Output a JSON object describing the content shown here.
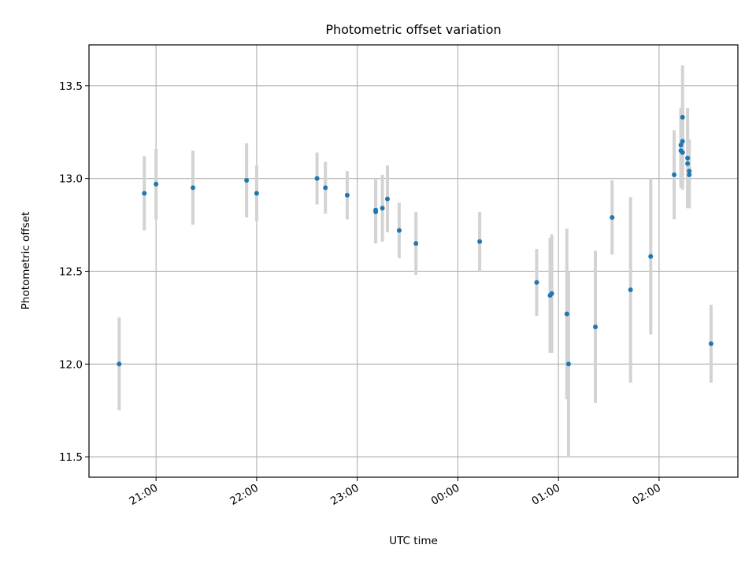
{
  "chart_data": {
    "type": "scatter",
    "title": "Photometric offset variation",
    "xlabel": "UTC time",
    "ylabel": "Photometric offset",
    "xlim": [
      "20:20",
      "02:47"
    ],
    "ylim": [
      11.39,
      13.72
    ],
    "x_ticks": [
      "21:00",
      "22:00",
      "23:00",
      "00:00",
      "01:00",
      "02:00"
    ],
    "y_ticks": [
      "11.5",
      "12.0",
      "12.5",
      "13.0",
      "13.5"
    ],
    "grid": true,
    "colors": {
      "point": "#1f77b4",
      "errorbar": "#d3d3d3",
      "grid": "#b0b0b0"
    },
    "points": [
      {
        "x": "20:38",
        "y": 12.0,
        "err": 0.25
      },
      {
        "x": "20:53",
        "y": 12.92,
        "err": 0.2
      },
      {
        "x": "21:00",
        "y": 12.97,
        "err": 0.19
      },
      {
        "x": "21:22",
        "y": 12.95,
        "err": 0.2
      },
      {
        "x": "21:54",
        "y": 12.99,
        "err": 0.2
      },
      {
        "x": "22:00",
        "y": 12.92,
        "err": 0.15
      },
      {
        "x": "22:36",
        "y": 13.0,
        "err": 0.14
      },
      {
        "x": "22:41",
        "y": 12.95,
        "err": 0.14
      },
      {
        "x": "22:54",
        "y": 12.91,
        "err": 0.13
      },
      {
        "x": "23:11",
        "y": 12.83,
        "err": 0.17
      },
      {
        "x": "23:11",
        "y": 12.82,
        "err": 0.17
      },
      {
        "x": "23:15",
        "y": 12.84,
        "err": 0.18
      },
      {
        "x": "23:18",
        "y": 12.89,
        "err": 0.18
      },
      {
        "x": "23:25",
        "y": 12.72,
        "err": 0.15
      },
      {
        "x": "23:35",
        "y": 12.65,
        "err": 0.17
      },
      {
        "x": "00:13",
        "y": 12.66,
        "err": 0.16
      },
      {
        "x": "00:47",
        "y": 12.44,
        "err": 0.18
      },
      {
        "x": "00:55",
        "y": 12.37,
        "err": 0.31
      },
      {
        "x": "00:56",
        "y": 12.38,
        "err": 0.32
      },
      {
        "x": "01:05",
        "y": 12.27,
        "err": 0.46
      },
      {
        "x": "01:06",
        "y": 12.0,
        "err": 0.5
      },
      {
        "x": "01:22",
        "y": 12.2,
        "err": 0.41
      },
      {
        "x": "01:32",
        "y": 12.79,
        "err": 0.2
      },
      {
        "x": "01:43",
        "y": 12.4,
        "err": 0.5
      },
      {
        "x": "01:55",
        "y": 12.58,
        "err": 0.42
      },
      {
        "x": "02:09",
        "y": 13.02,
        "err": 0.24
      },
      {
        "x": "02:13",
        "y": 13.15,
        "err": 0.2
      },
      {
        "x": "02:13",
        "y": 13.18,
        "err": 0.2
      },
      {
        "x": "02:14",
        "y": 13.2,
        "err": 0.2
      },
      {
        "x": "02:14",
        "y": 13.14,
        "err": 0.2
      },
      {
        "x": "02:14",
        "y": 13.33,
        "err": 0.28
      },
      {
        "x": "02:17",
        "y": 13.11,
        "err": 0.27
      },
      {
        "x": "02:17",
        "y": 13.08,
        "err": 0.22
      },
      {
        "x": "02:18",
        "y": 13.02,
        "err": 0.18
      },
      {
        "x": "02:18",
        "y": 13.04,
        "err": 0.17
      },
      {
        "x": "02:31",
        "y": 12.11,
        "err": 0.21
      }
    ]
  }
}
